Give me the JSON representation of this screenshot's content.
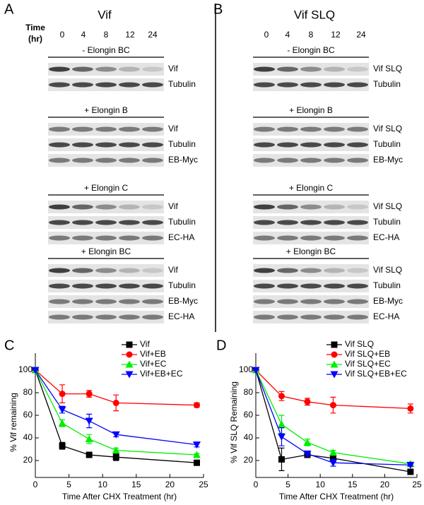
{
  "blots": [
    {
      "panel": "A",
      "title": "Vif",
      "time_label": [
        "Time",
        "(hr)"
      ],
      "times": [
        "0",
        "4",
        "8",
        "12",
        "24"
      ],
      "groups": [
        {
          "label": "- Elongin BC",
          "rows": [
            "Vif",
            "Tubulin"
          ]
        },
        {
          "label": "+ Elongin B",
          "rows": [
            "Vif",
            "Tubulin",
            "EB-Myc"
          ]
        },
        {
          "label": "+ Elongin C",
          "rows": [
            "Vif",
            "Tubulin",
            "EC-HA"
          ]
        },
        {
          "label": "+ Elongin BC",
          "rows": [
            "Vif",
            "Tubulin",
            "EB-Myc",
            "EC-HA"
          ]
        }
      ]
    },
    {
      "panel": "B",
      "title": "Vif SLQ",
      "times": [
        "0",
        "4",
        "8",
        "12",
        "24"
      ],
      "groups": [
        {
          "label": "- Elongin BC",
          "rows": [
            "Vif SLQ",
            "Tubulin"
          ]
        },
        {
          "label": "+ Elongin B",
          "rows": [
            "Vif SLQ",
            "Tubulin",
            "EB-Myc"
          ]
        },
        {
          "label": "+ Elongin C",
          "rows": [
            "Vif SLQ",
            "Tubulin",
            "EC-HA"
          ]
        },
        {
          "label": "+ Elongin BC",
          "rows": [
            "Vif SLQ",
            "Tubulin",
            "EB-Myc",
            "EC-HA"
          ]
        }
      ]
    }
  ],
  "chart_data": [
    {
      "type": "line",
      "panel": "C",
      "x_label": "Time After CHX Treatment (hr)",
      "y_label": "% Vif remaining",
      "x": [
        0,
        4,
        8,
        12,
        24
      ],
      "xlim": [
        0,
        25
      ],
      "xticks": [
        0,
        5,
        10,
        15,
        20,
        25
      ],
      "ylim": [
        5,
        115
      ],
      "yticks": [
        20,
        40,
        60,
        80,
        100
      ],
      "legend": "upper right",
      "series": [
        {
          "name": "Vif",
          "color": "#000000",
          "marker": "square",
          "values": [
            100,
            33,
            25,
            23,
            18
          ],
          "errors": [
            0,
            3,
            2,
            3,
            1
          ]
        },
        {
          "name": "Vif+EB",
          "color": "#ff0000",
          "marker": "circle",
          "values": [
            100,
            79,
            79,
            71,
            69
          ],
          "errors": [
            0,
            8,
            3,
            7,
            2
          ]
        },
        {
          "name": "Vif+EC",
          "color": "#00ee00",
          "marker": "triangle-up",
          "values": [
            100,
            53,
            39,
            29,
            25
          ],
          "errors": [
            0,
            3,
            4,
            2,
            1
          ]
        },
        {
          "name": "Vif+EB+EC",
          "color": "#0000ff",
          "marker": "triangle-down",
          "values": [
            100,
            65,
            55,
            43,
            34
          ],
          "errors": [
            0,
            3,
            6,
            2,
            2
          ]
        }
      ]
    },
    {
      "type": "line",
      "panel": "D",
      "x_label": "Time After CHX Treatment (hr)",
      "y_label": "% Vif SLQ Remaining",
      "x": [
        0,
        4,
        8,
        12,
        24
      ],
      "xlim": [
        0,
        25
      ],
      "xticks": [
        0,
        5,
        10,
        15,
        20,
        25
      ],
      "ylim": [
        5,
        115
      ],
      "yticks": [
        20,
        40,
        60,
        80,
        100
      ],
      "legend": "upper right",
      "series": [
        {
          "name": "Vif SLQ",
          "color": "#000000",
          "marker": "square",
          "values": [
            100,
            21,
            25,
            22,
            10
          ],
          "errors": [
            0,
            10,
            2,
            3,
            2
          ]
        },
        {
          "name": "Vif SLQ+EB",
          "color": "#ff0000",
          "marker": "circle",
          "values": [
            100,
            77,
            72,
            69,
            66
          ],
          "errors": [
            0,
            4,
            3,
            7,
            4
          ]
        },
        {
          "name": "Vif SLQ+EC",
          "color": "#00ee00",
          "marker": "triangle-up",
          "values": [
            100,
            52,
            36,
            27,
            17
          ],
          "errors": [
            0,
            8,
            3,
            2,
            1
          ]
        },
        {
          "name": "Vif SLQ+EB+EC",
          "color": "#0000ff",
          "marker": "triangle-down",
          "values": [
            100,
            41,
            26,
            18,
            16
          ],
          "errors": [
            0,
            8,
            2,
            3,
            1
          ]
        }
      ]
    }
  ]
}
